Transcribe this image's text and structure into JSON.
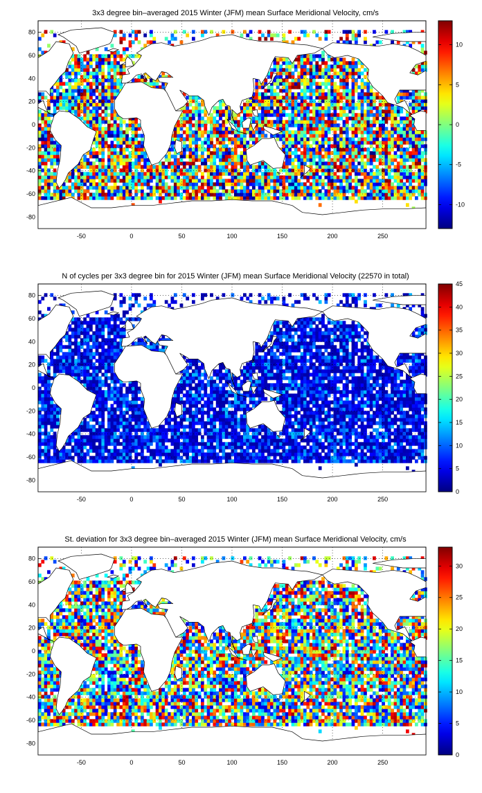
{
  "chart_data": [
    {
      "type": "heatmap",
      "title": "3x3 degree bin–averaged 2015 Winter (JFM) mean Surface Meridional Velocity, cm/s",
      "x_ticks": [
        "-50",
        "0",
        "50",
        "100",
        "150",
        "200",
        "250"
      ],
      "y_ticks": [
        "80",
        "60",
        "40",
        "20",
        "0",
        "-20",
        "-40",
        "-60",
        "-80"
      ],
      "xlim": [
        -93,
        293
      ],
      "ylim": [
        -90,
        90
      ],
      "bin_size_deg": 3,
      "grid": true,
      "colorbar": {
        "ticks": [
          "10",
          "5",
          "0",
          "-5",
          "-10"
        ],
        "range": [
          -13,
          13
        ],
        "placement": "right"
      },
      "colormap": "jet"
    },
    {
      "type": "heatmap",
      "title": "N of cycles per 3x3 degree bin for 2015 Winter (JFM) mean Surface Meridional Velocity (22570 in total)",
      "x_ticks": [
        "-50",
        "0",
        "50",
        "100",
        "150",
        "200",
        "250"
      ],
      "y_ticks": [
        "80",
        "60",
        "40",
        "20",
        "0",
        "-20",
        "-40",
        "-60",
        "-80"
      ],
      "xlim": [
        -93,
        293
      ],
      "ylim": [
        -90,
        90
      ],
      "bin_size_deg": 3,
      "grid": true,
      "colorbar": {
        "ticks": [
          "45",
          "40",
          "35",
          "30",
          "25",
          "20",
          "15",
          "10",
          "5",
          "0"
        ],
        "range": [
          0,
          45
        ],
        "placement": "right"
      },
      "colormap": "jet"
    },
    {
      "type": "heatmap",
      "title": "St. deviation for 3x3 degree bin–averaged 2015 Winter (JFM) mean Surface Meridional Velocity, cm/s",
      "x_ticks": [
        "-50",
        "0",
        "50",
        "100",
        "150",
        "200",
        "250"
      ],
      "y_ticks": [
        "80",
        "60",
        "40",
        "20",
        "0",
        "-20",
        "-40",
        "-60",
        "-80"
      ],
      "xlim": [
        -93,
        293
      ],
      "ylim": [
        -90,
        90
      ],
      "bin_size_deg": 3,
      "grid": true,
      "colorbar": {
        "ticks": [
          "30",
          "25",
          "20",
          "15",
          "10",
          "5",
          "0"
        ],
        "range": [
          0,
          33
        ],
        "placement": "right"
      },
      "colormap": "jet"
    }
  ]
}
